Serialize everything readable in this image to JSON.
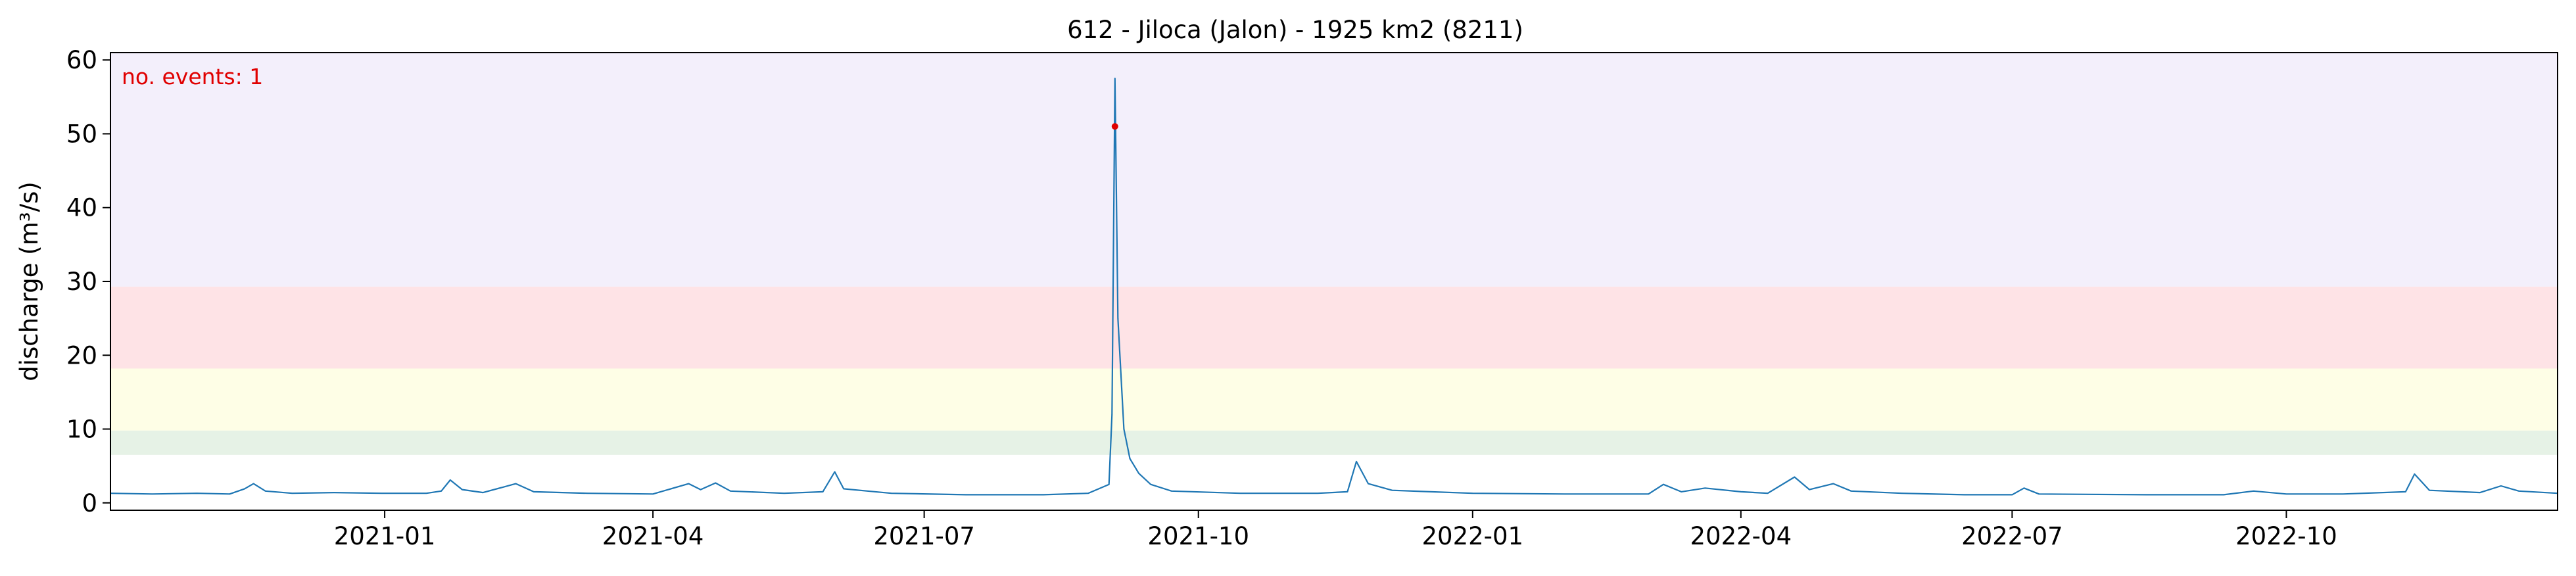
{
  "chart_data": {
    "type": "line",
    "title": "612 - Jiloca (Jalon) - 1925 km2 (8211)",
    "xlabel": "",
    "ylabel": "discharge (m³/s)",
    "xlim": [
      "2020-10-01",
      "2022-12-31"
    ],
    "ylim": [
      -1,
      61
    ],
    "x_ticks": [
      "2021-01",
      "2021-04",
      "2021-07",
      "2021-10",
      "2022-01",
      "2022-04",
      "2022-07",
      "2022-10"
    ],
    "y_ticks": [
      0,
      10,
      20,
      30,
      40,
      50,
      60
    ],
    "grid": false,
    "bands": [
      {
        "from": 6.5,
        "to": 9.8,
        "color": "#e6f2e6"
      },
      {
        "from": 9.8,
        "to": 18.2,
        "color": "#fefee6"
      },
      {
        "from": 18.2,
        "to": 29.3,
        "color": "#fee3e6"
      },
      {
        "from": 29.3,
        "to": 61,
        "color": "#f3effb"
      }
    ],
    "series": [
      {
        "color": "#1f77b4",
        "points": [
          [
            "2020-10-01",
            1.3
          ],
          [
            "2020-10-15",
            1.2
          ],
          [
            "2020-10-30",
            1.3
          ],
          [
            "2020-11-10",
            1.2
          ],
          [
            "2020-11-15",
            1.9
          ],
          [
            "2020-11-18",
            2.6
          ],
          [
            "2020-11-22",
            1.6
          ],
          [
            "2020-12-01",
            1.3
          ],
          [
            "2020-12-15",
            1.4
          ],
          [
            "2020-12-31",
            1.3
          ],
          [
            "2021-01-15",
            1.3
          ],
          [
            "2021-01-20",
            1.6
          ],
          [
            "2021-01-23",
            3.1
          ],
          [
            "2021-01-27",
            1.8
          ],
          [
            "2021-02-03",
            1.4
          ],
          [
            "2021-02-14",
            2.6
          ],
          [
            "2021-02-20",
            1.5
          ],
          [
            "2021-03-10",
            1.3
          ],
          [
            "2021-04-01",
            1.2
          ],
          [
            "2021-04-13",
            2.6
          ],
          [
            "2021-04-17",
            1.8
          ],
          [
            "2021-04-22",
            2.7
          ],
          [
            "2021-04-27",
            1.6
          ],
          [
            "2021-05-15",
            1.3
          ],
          [
            "2021-05-28",
            1.5
          ],
          [
            "2021-06-01",
            4.2
          ],
          [
            "2021-06-04",
            1.9
          ],
          [
            "2021-06-12",
            1.6
          ],
          [
            "2021-06-20",
            1.3
          ],
          [
            "2021-07-15",
            1.1
          ],
          [
            "2021-08-10",
            1.1
          ],
          [
            "2021-08-25",
            1.3
          ],
          [
            "2021-09-01",
            2.5
          ],
          [
            "2021-09-02",
            12.0
          ],
          [
            "2021-09-03",
            57.5
          ],
          [
            "2021-09-04",
            25.0
          ],
          [
            "2021-09-06",
            10.0
          ],
          [
            "2021-09-08",
            6.0
          ],
          [
            "2021-09-11",
            4.0
          ],
          [
            "2021-09-15",
            2.5
          ],
          [
            "2021-09-22",
            1.6
          ],
          [
            "2021-10-15",
            1.3
          ],
          [
            "2021-11-10",
            1.3
          ],
          [
            "2021-11-20",
            1.5
          ],
          [
            "2021-11-23",
            5.6
          ],
          [
            "2021-11-27",
            2.6
          ],
          [
            "2021-12-05",
            1.7
          ],
          [
            "2022-01-01",
            1.3
          ],
          [
            "2022-02-01",
            1.2
          ],
          [
            "2022-03-01",
            1.2
          ],
          [
            "2022-03-06",
            2.5
          ],
          [
            "2022-03-12",
            1.5
          ],
          [
            "2022-03-20",
            2.0
          ],
          [
            "2022-04-01",
            1.5
          ],
          [
            "2022-04-10",
            1.3
          ],
          [
            "2022-04-19",
            3.5
          ],
          [
            "2022-04-24",
            1.8
          ],
          [
            "2022-05-02",
            2.6
          ],
          [
            "2022-05-08",
            1.6
          ],
          [
            "2022-05-25",
            1.3
          ],
          [
            "2022-06-15",
            1.1
          ],
          [
            "2022-07-01",
            1.1
          ],
          [
            "2022-07-05",
            2.0
          ],
          [
            "2022-07-10",
            1.2
          ],
          [
            "2022-08-15",
            1.1
          ],
          [
            "2022-09-10",
            1.1
          ],
          [
            "2022-09-20",
            1.6
          ],
          [
            "2022-10-01",
            1.2
          ],
          [
            "2022-10-20",
            1.2
          ],
          [
            "2022-11-10",
            1.5
          ],
          [
            "2022-11-13",
            3.9
          ],
          [
            "2022-11-18",
            1.7
          ],
          [
            "2022-12-05",
            1.4
          ],
          [
            "2022-12-12",
            2.3
          ],
          [
            "2022-12-18",
            1.6
          ],
          [
            "2022-12-31",
            1.3
          ]
        ]
      }
    ],
    "events": [
      {
        "x": "2021-09-03",
        "y": 51,
        "color": "#e00000"
      }
    ],
    "annotations": [
      {
        "text": "no. events: 1",
        "position": "top-left",
        "color": "#e00000"
      }
    ]
  }
}
